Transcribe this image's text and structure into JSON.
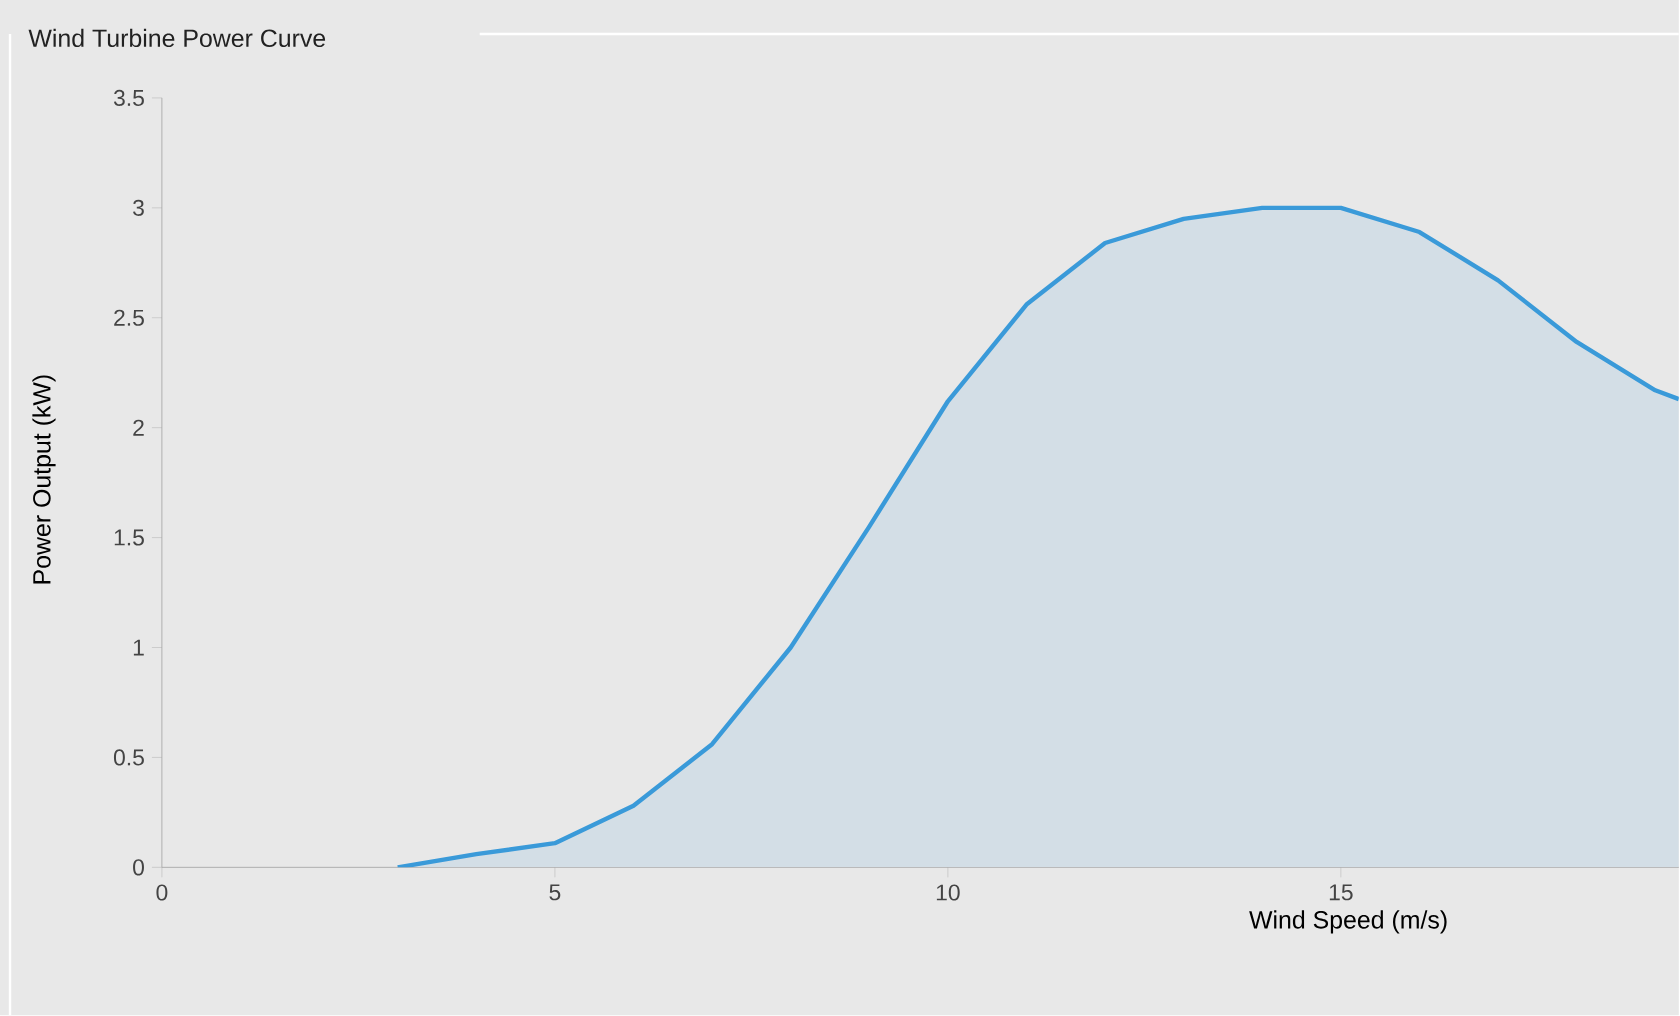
{
  "chart_data": {
    "type": "area",
    "title": "Wind Turbine Power Curve",
    "xlabel": "Wind Speed (m/s)",
    "ylabel": "Power Output (kW)",
    "x": [
      3,
      4,
      5,
      6,
      7,
      8,
      9,
      10,
      11,
      12,
      13,
      14,
      15,
      16,
      17,
      18,
      19,
      19.3
    ],
    "series": [
      {
        "color": "#3a9ad9",
        "values": [
          0,
          0.06,
          0.11,
          0.28,
          0.56,
          1.0,
          1.55,
          2.12,
          2.56,
          2.84,
          2.95,
          3.0,
          3.0,
          2.89,
          2.67,
          2.39,
          2.17,
          2.13
        ]
      }
    ],
    "xlim": [
      0,
      19.3
    ],
    "xticks": [
      0,
      5,
      10,
      15
    ],
    "ylim": [
      0,
      3.5
    ],
    "yticks": [
      0,
      0.5,
      1,
      1.5,
      2,
      2.5,
      3,
      3.5
    ],
    "grid": false
  }
}
